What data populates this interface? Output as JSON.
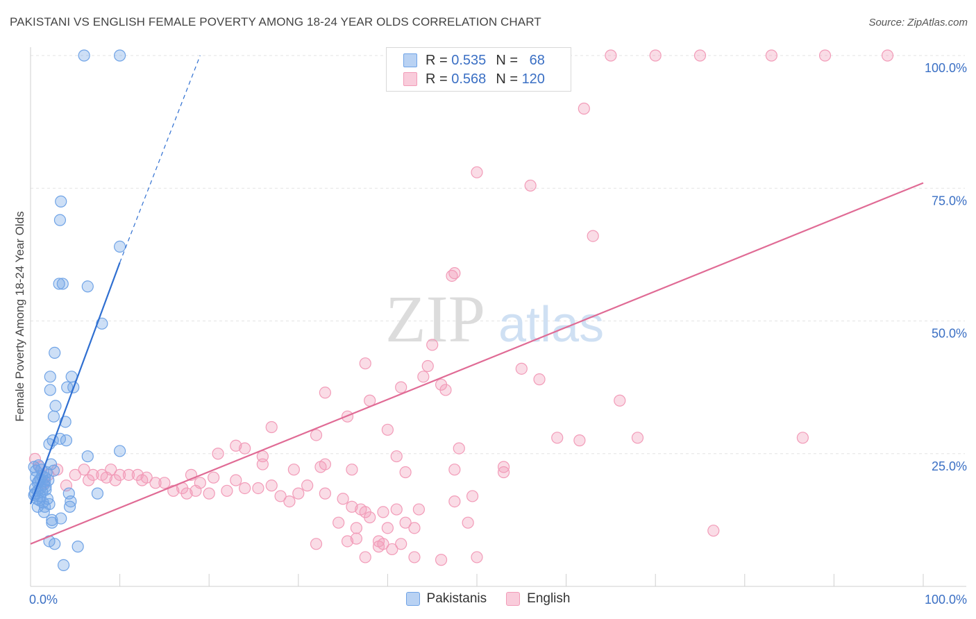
{
  "header": {
    "title": "PAKISTANI VS ENGLISH FEMALE POVERTY AMONG 18-24 YEAR OLDS CORRELATION CHART",
    "source": "Source: ZipAtlas.com"
  },
  "watermark": {
    "zip": "ZIP",
    "atlas": "atlas"
  },
  "colors": {
    "pakistanis": "#6fa3e6",
    "english": "#f29bb8",
    "pakistanis_line": "#2f6fd1",
    "english_line": "#e06b95",
    "tick_label": "#3a6fc4"
  },
  "legend": {
    "rows": [
      {
        "r_label": "R =",
        "r_value": "0.535",
        "n_label": "N =",
        "n_value": "68"
      },
      {
        "r_label": "R =",
        "r_value": "0.568",
        "n_label": "N =",
        "n_value": "120"
      }
    ]
  },
  "bottom_legend": {
    "items": [
      {
        "label": "Pakistanis"
      },
      {
        "label": "English"
      }
    ]
  },
  "chart_data": {
    "type": "scatter",
    "title": "PAKISTANI VS ENGLISH FEMALE POVERTY AMONG 18-24 YEAR OLDS CORRELATION CHART",
    "xlabel": "",
    "ylabel": "Female Poverty Among 18-24 Year Olds",
    "xlim": [
      0,
      100
    ],
    "ylim": [
      0,
      100
    ],
    "x_tick_labels": [
      {
        "value": 0,
        "label": "0.0%"
      },
      {
        "value": 100,
        "label": "100.0%"
      }
    ],
    "y_tick_labels": [
      {
        "value": 25,
        "label": "25.0%"
      },
      {
        "value": 50,
        "label": "50.0%"
      },
      {
        "value": 75,
        "label": "75.0%"
      },
      {
        "value": 100,
        "label": "100.0%"
      }
    ],
    "grid": true,
    "legend_position": "top-center",
    "series": [
      {
        "name": "Pakistanis",
        "r": 0.535,
        "n": 68,
        "trend": {
          "x0": 0,
          "y0": 15.5,
          "x1": 10,
          "y1": 61,
          "dash_to_x": 19,
          "dash_to_y": 100
        },
        "points": [
          [
            6,
            100
          ],
          [
            10,
            100
          ],
          [
            3.4,
            72.5
          ],
          [
            3.3,
            69
          ],
          [
            10,
            64
          ],
          [
            3.2,
            57
          ],
          [
            3.6,
            57
          ],
          [
            6.4,
            56.5
          ],
          [
            8,
            49.5
          ],
          [
            2.7,
            44
          ],
          [
            2.2,
            39.5
          ],
          [
            4.6,
            39.5
          ],
          [
            4.1,
            37.5
          ],
          [
            4.8,
            37.5
          ],
          [
            2.2,
            37
          ],
          [
            2.8,
            34
          ],
          [
            2.6,
            32
          ],
          [
            3.9,
            31
          ],
          [
            2.5,
            27.5
          ],
          [
            3.3,
            27.8
          ],
          [
            4,
            27.5
          ],
          [
            2.1,
            26.8
          ],
          [
            6.4,
            24.5
          ],
          [
            10,
            25.5
          ],
          [
            0.4,
            22.5
          ],
          [
            1.2,
            22
          ],
          [
            1.8,
            21.5
          ],
          [
            2.3,
            23
          ],
          [
            2.6,
            21.8
          ],
          [
            0.6,
            20.5
          ],
          [
            1.1,
            20.2
          ],
          [
            1.6,
            19.8
          ],
          [
            0.8,
            19.5
          ],
          [
            1.5,
            19.2
          ],
          [
            0.5,
            18.5
          ],
          [
            1.1,
            18.5
          ],
          [
            1.7,
            18.8
          ],
          [
            0.8,
            18
          ],
          [
            1.3,
            17.8
          ],
          [
            0.5,
            17.5
          ],
          [
            1.1,
            17
          ],
          [
            1.9,
            16.5
          ],
          [
            0.7,
            16.5
          ],
          [
            1.4,
            15.8
          ],
          [
            2.1,
            15.5
          ],
          [
            0.8,
            15
          ],
          [
            1.6,
            15
          ],
          [
            4.5,
            16
          ],
          [
            4.4,
            15
          ],
          [
            4.3,
            17.5
          ],
          [
            7.5,
            17.5
          ],
          [
            1.5,
            14
          ],
          [
            2.4,
            12.5
          ],
          [
            2.4,
            12
          ],
          [
            3.4,
            12.8
          ],
          [
            2.1,
            8.5
          ],
          [
            2.7,
            8
          ],
          [
            5.3,
            7.5
          ],
          [
            3.7,
            4
          ],
          [
            0.9,
            19.8
          ],
          [
            1.6,
            20.5
          ],
          [
            0.6,
            21.8
          ],
          [
            2.0,
            20.0
          ],
          [
            1.0,
            16.2
          ],
          [
            0.4,
            17.2
          ],
          [
            1.3,
            20.8
          ],
          [
            0.9,
            22.8
          ],
          [
            1.7,
            18.2
          ]
        ]
      },
      {
        "name": "English",
        "r": 0.568,
        "n": 120,
        "trend": {
          "x0": 0,
          "y0": 8,
          "x1": 100,
          "y1": 76
        },
        "points": [
          [
            47,
            100
          ],
          [
            52,
            100
          ],
          [
            57,
            100
          ],
          [
            59,
            100
          ],
          [
            65,
            100
          ],
          [
            70,
            100
          ],
          [
            75,
            100
          ],
          [
            83,
            100
          ],
          [
            89,
            100
          ],
          [
            96,
            100
          ],
          [
            62,
            90
          ],
          [
            50,
            78
          ],
          [
            56,
            75.5
          ],
          [
            63,
            66
          ],
          [
            47.5,
            59
          ],
          [
            47.2,
            58.5
          ],
          [
            45,
            45.5
          ],
          [
            37.5,
            42
          ],
          [
            44.5,
            41.5
          ],
          [
            44,
            39.5
          ],
          [
            55,
            41
          ],
          [
            57,
            39
          ],
          [
            46,
            38
          ],
          [
            46.5,
            37
          ],
          [
            41.5,
            37.5
          ],
          [
            33,
            36.5
          ],
          [
            38,
            35
          ],
          [
            66,
            35
          ],
          [
            35.5,
            32
          ],
          [
            27,
            30
          ],
          [
            40,
            29.5
          ],
          [
            32,
            28.5
          ],
          [
            59,
            28
          ],
          [
            61.5,
            27.5
          ],
          [
            68,
            28
          ],
          [
            23,
            26.5
          ],
          [
            24,
            26
          ],
          [
            48,
            26
          ],
          [
            21,
            25
          ],
          [
            26,
            24.5
          ],
          [
            41,
            24.5
          ],
          [
            26,
            23
          ],
          [
            33,
            23
          ],
          [
            47.5,
            22
          ],
          [
            53,
            22.5
          ],
          [
            29.5,
            22
          ],
          [
            32.5,
            22.5
          ],
          [
            36,
            22
          ],
          [
            18,
            21
          ],
          [
            20.5,
            20.5
          ],
          [
            42,
            21.5
          ],
          [
            6,
            22
          ],
          [
            8,
            21
          ],
          [
            9,
            22
          ],
          [
            10,
            21
          ],
          [
            11,
            21
          ],
          [
            12,
            21
          ],
          [
            12.5,
            20
          ],
          [
            5,
            21
          ],
          [
            6.5,
            20
          ],
          [
            7,
            21
          ],
          [
            8.5,
            20.5
          ],
          [
            9.5,
            20
          ],
          [
            13,
            20.5
          ],
          [
            14,
            19.5
          ],
          [
            15,
            19.5
          ],
          [
            16,
            18
          ],
          [
            17,
            18.5
          ],
          [
            17.5,
            17.5
          ],
          [
            18.5,
            18
          ],
          [
            19,
            19.5
          ],
          [
            20,
            17.5
          ],
          [
            22,
            18
          ],
          [
            23,
            20
          ],
          [
            24,
            18.5
          ],
          [
            25.5,
            18.5
          ],
          [
            27,
            19
          ],
          [
            28,
            17
          ],
          [
            29,
            16
          ],
          [
            30,
            17.5
          ],
          [
            31,
            19
          ],
          [
            33,
            17.5
          ],
          [
            35,
            16.5
          ],
          [
            36,
            15
          ],
          [
            37,
            14.5
          ],
          [
            38,
            13
          ],
          [
            39.5,
            14
          ],
          [
            41,
            14.5
          ],
          [
            42,
            12
          ],
          [
            34.5,
            12
          ],
          [
            36.5,
            11
          ],
          [
            40,
            11
          ],
          [
            43,
            11
          ],
          [
            39,
            8.5
          ],
          [
            41.5,
            8
          ],
          [
            36.5,
            9
          ],
          [
            39.5,
            8
          ],
          [
            35.5,
            8.5
          ],
          [
            39,
            7.5
          ],
          [
            40.5,
            7
          ],
          [
            32,
            8
          ],
          [
            37.5,
            5.5
          ],
          [
            43,
            5.5
          ],
          [
            46,
            5
          ],
          [
            50,
            5.5
          ],
          [
            37.5,
            14
          ],
          [
            43.5,
            14.5
          ],
          [
            47.5,
            16
          ],
          [
            49.5,
            17
          ],
          [
            49,
            12
          ],
          [
            53,
            21.5
          ],
          [
            2,
            21
          ],
          [
            1,
            22.5
          ],
          [
            0.5,
            24
          ],
          [
            3,
            22
          ],
          [
            1.5,
            19.5
          ],
          [
            4,
            19
          ],
          [
            86.5,
            28
          ],
          [
            76.5,
            10.5
          ]
        ]
      }
    ]
  }
}
